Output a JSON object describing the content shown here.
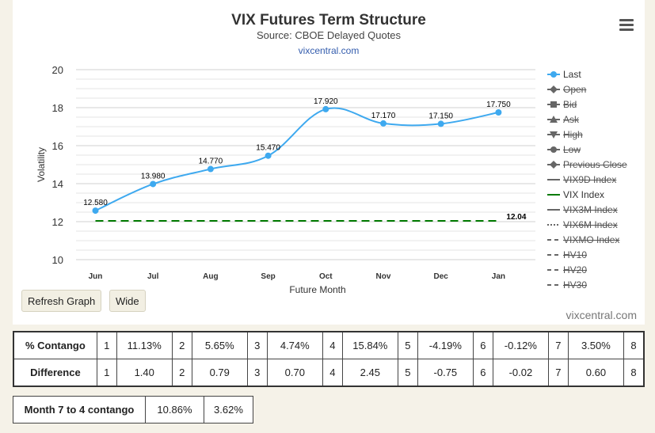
{
  "chart_data": {
    "type": "line",
    "title": "VIX Futures Term Structure",
    "subtitle": "Source: CBOE Delayed Quotes",
    "source_link": "vixcentral.com",
    "credit": "vixcentral.com",
    "xlabel": "Future Month",
    "ylabel": "Volatility",
    "categories": [
      "Jun",
      "Jul",
      "Aug",
      "Sep",
      "Oct",
      "Nov",
      "Dec",
      "Jan"
    ],
    "ylim": [
      10,
      20
    ],
    "yticks": [
      10,
      12,
      14,
      16,
      18,
      20
    ],
    "series": [
      {
        "name": "Last",
        "values": [
          12.58,
          13.98,
          14.77,
          15.47,
          17.92,
          17.17,
          17.15,
          17.75
        ],
        "labels": [
          "12.580",
          "13.980",
          "14.770",
          "15.470",
          "17.920",
          "17.170",
          "17.150",
          "17.750"
        ],
        "color": "#3ea9ef"
      },
      {
        "name": "VIX Index",
        "value": 12.04,
        "label": "12.04",
        "color": "#007a00",
        "style": "dashed"
      }
    ],
    "legend_position": "right",
    "grid": true
  },
  "legend": [
    {
      "label": "Last",
      "icon": "circle-marker",
      "active": true,
      "color": "#3ea9ef"
    },
    {
      "label": "Open",
      "icon": "diamond-marker",
      "active": false,
      "color": "#666666"
    },
    {
      "label": "Bid",
      "icon": "square-marker",
      "active": false,
      "color": "#666666"
    },
    {
      "label": "Ask",
      "icon": "triangle-marker",
      "active": false,
      "color": "#666666"
    },
    {
      "label": "High",
      "icon": "triangle-down-marker",
      "active": false,
      "color": "#666666"
    },
    {
      "label": "Low",
      "icon": "circle-marker",
      "active": false,
      "color": "#666666"
    },
    {
      "label": "Previous Close",
      "icon": "diamond-marker",
      "active": false,
      "color": "#666666"
    },
    {
      "label": "VIX9D Index",
      "icon": "solid-line",
      "active": false,
      "color": "#666666"
    },
    {
      "label": "VIX Index",
      "icon": "solid-line",
      "active": true,
      "color": "#007a00"
    },
    {
      "label": "VIX3M Index",
      "icon": "solid-line",
      "active": false,
      "color": "#666666"
    },
    {
      "label": "VIX6M Index",
      "icon": "dotted-line",
      "active": false,
      "color": "#666666"
    },
    {
      "label": "VIXMO Index",
      "icon": "dashed-line",
      "active": false,
      "color": "#666666"
    },
    {
      "label": "HV10",
      "icon": "dashed-line",
      "active": false,
      "color": "#666666"
    },
    {
      "label": "HV20",
      "icon": "dashed-line",
      "active": false,
      "color": "#666666"
    },
    {
      "label": "HV30",
      "icon": "dashed-line",
      "active": false,
      "color": "#666666"
    }
  ],
  "buttons": {
    "refresh": "Refresh Graph",
    "wide": "Wide"
  },
  "stats": {
    "contango": {
      "label": "% Contango",
      "cells": [
        [
          "1",
          "11.13%"
        ],
        [
          "2",
          "5.65%"
        ],
        [
          "3",
          "4.74%"
        ],
        [
          "4",
          "15.84%"
        ],
        [
          "5",
          "-4.19%"
        ],
        [
          "6",
          "-0.12%"
        ],
        [
          "7",
          "3.50%"
        ],
        [
          "8",
          ""
        ]
      ]
    },
    "difference": {
      "label": "Difference",
      "cells": [
        [
          "1",
          "1.40"
        ],
        [
          "2",
          "0.79"
        ],
        [
          "3",
          "0.70"
        ],
        [
          "4",
          "2.45"
        ],
        [
          "5",
          "-0.75"
        ],
        [
          "6",
          "-0.02"
        ],
        [
          "7",
          "0.60"
        ],
        [
          "8",
          ""
        ]
      ]
    },
    "month74": {
      "label": "Month 7 to 4 contango",
      "values": [
        "10.86%",
        "3.62%"
      ]
    }
  }
}
